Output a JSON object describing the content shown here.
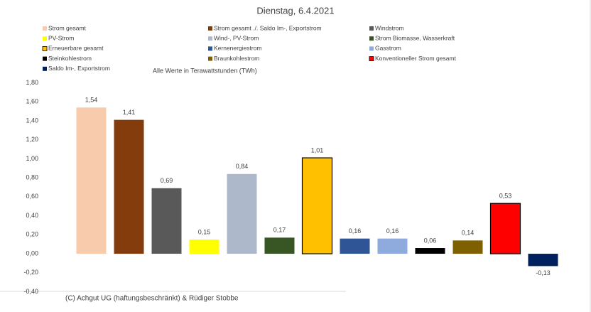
{
  "chart_data": {
    "type": "bar",
    "title": "Dienstag, 6.4.2021",
    "annotation": "Alle Werte in Terawattstunden (TWh)",
    "footer": "(C) Achgut UG (haftungsbeschränkt) & Rüdiger Stobbe",
    "ylim": [
      -0.4,
      1.8
    ],
    "yticks": [
      {
        "value": -0.4,
        "label": "-0,40"
      },
      {
        "value": -0.2,
        "label": "-0,20"
      },
      {
        "value": 0,
        "label": "0,00"
      },
      {
        "value": 0.2,
        "label": "0,20"
      },
      {
        "value": 0.4,
        "label": "0,40"
      },
      {
        "value": 0.6,
        "label": "0,60"
      },
      {
        "value": 0.8,
        "label": "0,80"
      },
      {
        "value": 1.0,
        "label": "1,00"
      },
      {
        "value": 1.2,
        "label": "1,20"
      },
      {
        "value": 1.4,
        "label": "1,40"
      },
      {
        "value": 1.6,
        "label": "1,60"
      },
      {
        "value": 1.8,
        "label": "1,80"
      }
    ],
    "grid": false,
    "series": [
      {
        "name": "Strom gesamt",
        "color": "#f8cbad",
        "values": [
          1.54
        ],
        "value_labels": [
          "1,54"
        ]
      },
      {
        "name": "Strom gesamt ./. Saldo Im-, Exportstrom",
        "color": "#843c0c",
        "values": [
          1.41
        ],
        "value_labels": [
          "1,41"
        ]
      },
      {
        "name": "Windstrom",
        "color": "#595959",
        "values": [
          0.69
        ],
        "value_labels": [
          "0,69"
        ]
      },
      {
        "name": "PV-Strom",
        "color": "#ffff00",
        "values": [
          0.15
        ],
        "value_labels": [
          "0,15"
        ]
      },
      {
        "name": "Wind-, PV-Strom",
        "color": "#adb9ca",
        "values": [
          0.84
        ],
        "value_labels": [
          "0,84"
        ]
      },
      {
        "name": "Strom Biomasse, Wasserkraft",
        "color": "#375623",
        "values": [
          0.17
        ],
        "value_labels": [
          "0,17"
        ]
      },
      {
        "name": "Erneuerbare gesamt",
        "color": "#ffc000",
        "edgecolor": "#000000",
        "values": [
          1.01
        ],
        "value_labels": [
          "1,01"
        ]
      },
      {
        "name": "Kernenergiestrom",
        "color": "#2f5597",
        "values": [
          0.16
        ],
        "value_labels": [
          "0,16"
        ]
      },
      {
        "name": "Gasstrom",
        "color": "#8faadc",
        "values": [
          0.16
        ],
        "value_labels": [
          "0,16"
        ]
      },
      {
        "name": "Steinkohlestrom",
        "color": "#000000",
        "values": [
          0.06
        ],
        "value_labels": [
          "0,06"
        ]
      },
      {
        "name": "Braunkohlestrom",
        "color": "#7f6000",
        "values": [
          0.14
        ],
        "value_labels": [
          "0,14"
        ]
      },
      {
        "name": "Konventioneller Strom gesamt",
        "color": "#ff0000",
        "edgecolor": "#000000",
        "values": [
          0.53
        ],
        "value_labels": [
          "0,53"
        ]
      },
      {
        "name": "Saldo Im-, Exportstrom",
        "color": "#002060",
        "values": [
          -0.13
        ],
        "value_labels": [
          "-0,13"
        ]
      }
    ]
  }
}
